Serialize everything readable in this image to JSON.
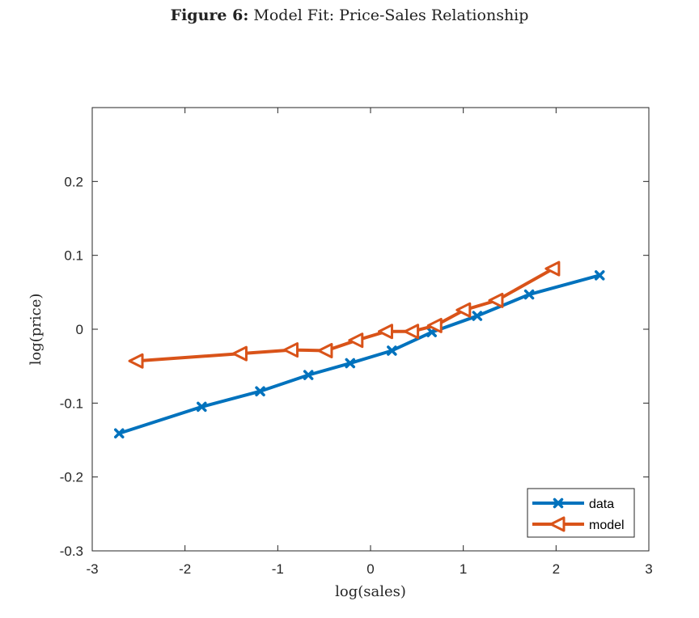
{
  "caption": {
    "figure_label": "Figure 6:",
    "title": "Model Fit: Price-Sales Relationship"
  },
  "colors": {
    "data": "#0072BD",
    "model": "#D95319",
    "axes": "#262626"
  },
  "chart_data": {
    "type": "line",
    "title": "Model Fit: Price-Sales Relationship",
    "xlabel": "log(sales)",
    "ylabel": "log(price)",
    "xlim": [
      -3,
      3
    ],
    "ylim": [
      -0.3,
      0.3
    ],
    "xticks": [
      -3,
      -2,
      -1,
      0,
      1,
      2,
      3
    ],
    "yticks": [
      -0.3,
      -0.2,
      -0.1,
      0,
      0.1,
      0.2
    ],
    "xtick_labels": [
      "-3",
      "-2",
      "-1",
      "0",
      "1",
      "2",
      "3"
    ],
    "ytick_labels": [
      "-0.3",
      "-0.2",
      "-0.1",
      "0",
      "0.1",
      "0.2"
    ],
    "grid": false,
    "legend_position": "bottom-right",
    "series": [
      {
        "name": "data",
        "marker": "x",
        "x": [
          -2.71,
          -1.82,
          -1.19,
          -0.67,
          -0.22,
          0.23,
          0.66,
          1.15,
          1.71,
          2.47
        ],
        "y": [
          -0.141,
          -0.105,
          -0.084,
          -0.062,
          -0.046,
          -0.029,
          -0.004,
          0.018,
          0.047,
          0.073
        ]
      },
      {
        "name": "model",
        "marker": "triangle-left",
        "x": [
          -2.52,
          -1.4,
          -0.85,
          -0.48,
          -0.15,
          0.17,
          0.45,
          0.7,
          1.01,
          1.36,
          1.97
        ],
        "y": [
          -0.043,
          -0.033,
          -0.028,
          -0.029,
          -0.015,
          -0.003,
          -0.003,
          0.005,
          0.026,
          0.039,
          0.082
        ]
      }
    ]
  }
}
